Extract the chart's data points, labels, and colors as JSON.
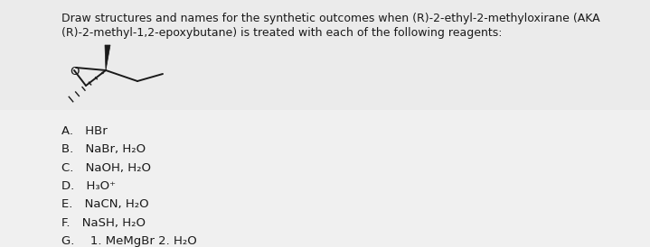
{
  "title_line1": "Draw structures and names for the synthetic outcomes when (R)-2-ethyl-2-methyloxirane (AKA",
  "title_line2": "(R)-2-methyl-1,2-epoxybutane) is treated with each of the following reagents:",
  "reagents": [
    "A. HBr",
    "B. NaBr, H₂O",
    "C. NaOH, H₂O",
    "D. H₃O⁺",
    "E. NaCN, H₂O",
    "F. NaSH, H₂O",
    "G.  1. MeMgBr 2. H₂O"
  ],
  "bg_color": "#ebebeb",
  "bg_color_bottom": "#f0f0f0",
  "text_color": "#1a1a1a",
  "font_size_title": 9.0,
  "font_size_reagents": 9.5,
  "structure_scale": 1.0
}
